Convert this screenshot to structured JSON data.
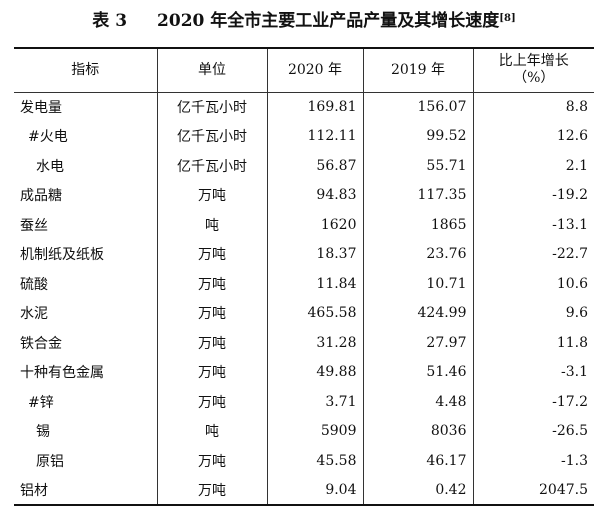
{
  "title": {
    "table_label": "表 3",
    "text": "2020 年全市主要工业产品产量及其增长速度",
    "footnote": "[8]"
  },
  "table": {
    "headers": [
      "指标",
      "单位",
      "2020 年",
      "2019 年",
      "比上年增长",
      "（%）"
    ],
    "rows": [
      {
        "indicator": "发电量",
        "unit": "亿千瓦小时",
        "y2020": "169.81",
        "y2019": "156.07",
        "growth": "8.8",
        "level": 0
      },
      {
        "indicator": "#火电",
        "unit": "亿千瓦小时",
        "y2020": "112.11",
        "y2019": "99.52",
        "growth": "12.6",
        "level": 1
      },
      {
        "indicator": "水电",
        "unit": "亿千瓦小时",
        "y2020": "56.87",
        "y2019": "55.71",
        "growth": "2.1",
        "level": 2
      },
      {
        "indicator": "成品糖",
        "unit": "万吨",
        "y2020": "94.83",
        "y2019": "117.35",
        "growth": "-19.2",
        "level": 0
      },
      {
        "indicator": "蚕丝",
        "unit": "吨",
        "y2020": "1620",
        "y2019": "1865",
        "growth": "-13.1",
        "level": 0
      },
      {
        "indicator": "机制纸及纸板",
        "unit": "万吨",
        "y2020": "18.37",
        "y2019": "23.76",
        "growth": "-22.7",
        "level": 0
      },
      {
        "indicator": "硫酸",
        "unit": "万吨",
        "y2020": "11.84",
        "y2019": "10.71",
        "growth": "10.6",
        "level": 0
      },
      {
        "indicator": "水泥",
        "unit": "万吨",
        "y2020": "465.58",
        "y2019": "424.99",
        "growth": "9.6",
        "level": 0
      },
      {
        "indicator": "铁合金",
        "unit": "万吨",
        "y2020": "31.28",
        "y2019": "27.97",
        "growth": "11.8",
        "level": 0
      },
      {
        "indicator": "十种有色金属",
        "unit": "万吨",
        "y2020": "49.88",
        "y2019": "51.46",
        "growth": "-3.1",
        "level": 0
      },
      {
        "indicator": "#锌",
        "unit": "万吨",
        "y2020": "3.71",
        "y2019": "4.48",
        "growth": "-17.2",
        "level": 1
      },
      {
        "indicator": "锡",
        "unit": "吨",
        "y2020": "5909",
        "y2019": "8036",
        "growth": "-26.5",
        "level": 2
      },
      {
        "indicator": "原铝",
        "unit": "万吨",
        "y2020": "45.58",
        "y2019": "46.17",
        "growth": "-1.3",
        "level": 2
      },
      {
        "indicator": "铝材",
        "unit": "万吨",
        "y2020": "9.04",
        "y2019": "0.42",
        "growth": "2047.5",
        "level": 0
      }
    ]
  }
}
